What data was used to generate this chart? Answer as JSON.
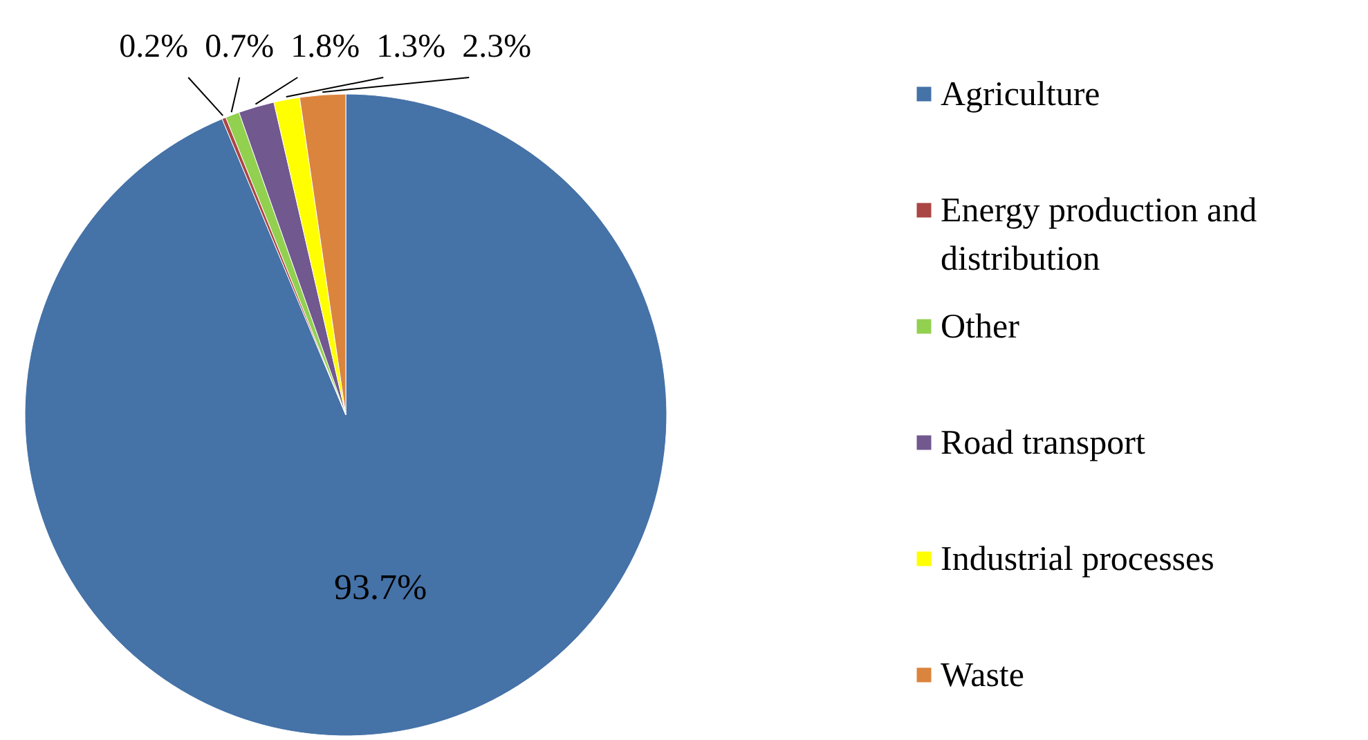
{
  "chart_data": {
    "type": "pie",
    "categories": [
      "Agriculture",
      "Energy production and distribution",
      "Other",
      "Road transport",
      "Industrial processes",
      "Waste"
    ],
    "values": [
      93.7,
      0.2,
      0.7,
      1.8,
      1.3,
      2.3
    ],
    "value_labels": [
      "93.7%",
      "0.2%",
      "0.7%",
      "1.8%",
      "1.3%",
      "2.3%"
    ],
    "colors": [
      "#4572a7",
      "#aa4643",
      "#92d050",
      "#71588f",
      "#ffff00",
      "#db843d"
    ],
    "legend": "right"
  }
}
